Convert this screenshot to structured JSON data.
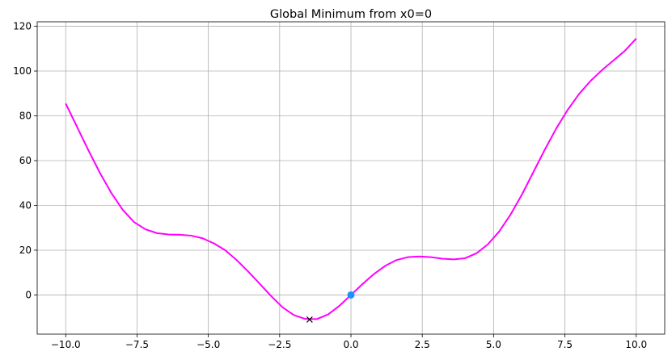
{
  "chart_data": {
    "type": "line",
    "title": "Global Minimum from x0=0",
    "xlabel": "",
    "ylabel": "",
    "xlim": [
      -11.0,
      11.0
    ],
    "ylim": [
      -17.5,
      122.0
    ],
    "xticks": [
      -10.0,
      -7.5,
      -5.0,
      -2.5,
      0.0,
      2.5,
      5.0,
      7.5,
      10.0
    ],
    "xtick_labels": [
      "−10.0",
      "−7.5",
      "−5.0",
      "−2.5",
      "0.0",
      "2.5",
      "5.0",
      "7.5",
      "10.0"
    ],
    "yticks": [
      0,
      20,
      40,
      60,
      80,
      100,
      120
    ],
    "ytick_labels": [
      "0",
      "20",
      "40",
      "60",
      "80",
      "100",
      "120"
    ],
    "grid": true,
    "legend": "none",
    "series": [
      {
        "color": "#ff00ff",
        "marker": "none",
        "x": [
          -10.0,
          -9.6,
          -9.2,
          -8.8,
          -8.4,
          -8.0,
          -7.6,
          -7.2,
          -6.8,
          -6.4,
          -6.0,
          -5.6,
          -5.2,
          -4.8,
          -4.4,
          -4.0,
          -3.6,
          -3.2,
          -2.8,
          -2.4,
          -2.0,
          -1.6,
          -1.2,
          -0.8,
          -0.4,
          0.0,
          0.4,
          0.8,
          1.2,
          1.6,
          2.0,
          2.4,
          2.8,
          3.2,
          3.6,
          4.0,
          4.4,
          4.8,
          5.2,
          5.6,
          6.0,
          6.4,
          6.8,
          7.2,
          7.6,
          8.0,
          8.4,
          8.8,
          9.2,
          9.6,
          10.0
        ],
        "y": [
          85.5,
          75.0,
          64.5,
          54.5,
          45.5,
          38.0,
          32.5,
          29.3,
          27.6,
          27.0,
          26.9,
          26.5,
          25.3,
          23.0,
          19.9,
          15.5,
          10.4,
          5.0,
          -0.5,
          -5.5,
          -9.0,
          -10.7,
          -10.8,
          -8.7,
          -4.8,
          0.0,
          4.8,
          9.3,
          13.0,
          15.6,
          16.9,
          17.2,
          16.9,
          16.2,
          15.9,
          16.4,
          18.6,
          22.6,
          28.4,
          36.0,
          45.0,
          55.0,
          65.0,
          74.4,
          82.7,
          89.8,
          95.6,
          100.4,
          104.7,
          109.0,
          114.5
        ]
      },
      {
        "color": "#1f8fff",
        "marker": "circle",
        "x": [
          0.0
        ],
        "y": [
          0.0
        ]
      },
      {
        "color": "#000000",
        "marker": "x",
        "x": [
          -1.45
        ],
        "y": [
          -11.0
        ]
      }
    ]
  }
}
